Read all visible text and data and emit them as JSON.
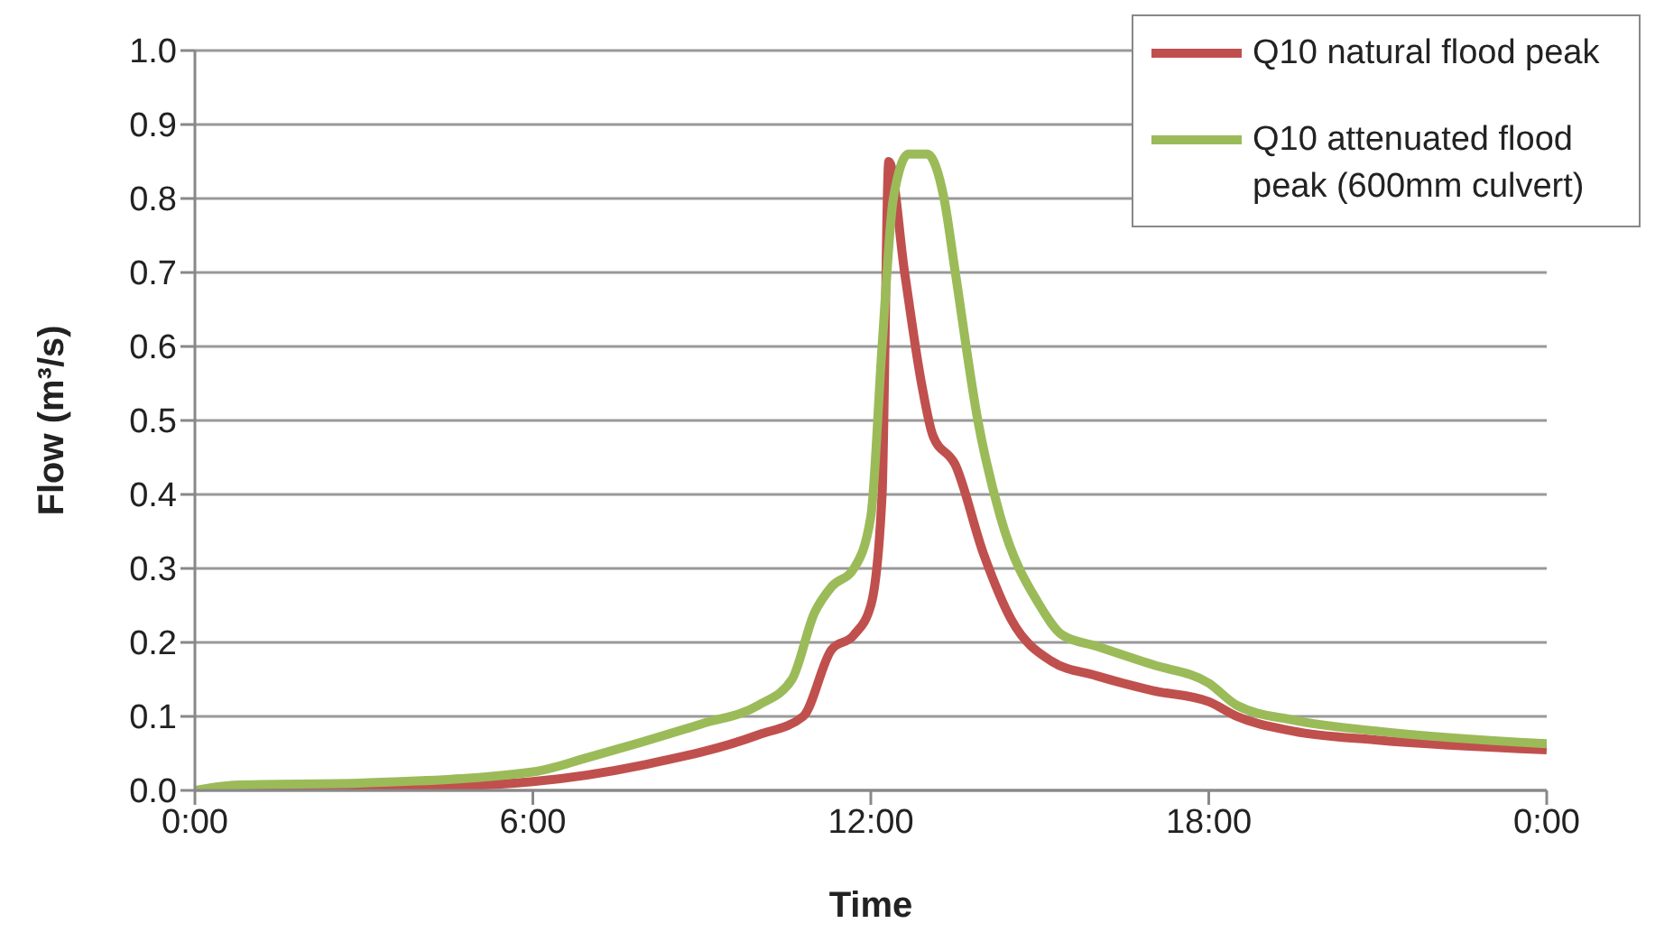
{
  "chart_data": {
    "type": "line",
    "xlabel": "Time",
    "ylabel": "Flow (m³/s)",
    "xlim": [
      0,
      24
    ],
    "xticks": [
      {
        "value": 0,
        "label": "0:00"
      },
      {
        "value": 6,
        "label": "6:00"
      },
      {
        "value": 12,
        "label": "12:00"
      },
      {
        "value": 18,
        "label": "18:00"
      },
      {
        "value": 24,
        "label": "0:00"
      }
    ],
    "ylim": [
      0,
      1
    ],
    "yticks": [
      {
        "value": 0,
        "label": "0.0"
      },
      {
        "value": 0.1,
        "label": "0.1"
      },
      {
        "value": 0.2,
        "label": "0.2"
      },
      {
        "value": 0.3,
        "label": "0.3"
      },
      {
        "value": 0.4,
        "label": "0.4"
      },
      {
        "value": 0.5,
        "label": "0.5"
      },
      {
        "value": 0.6,
        "label": "0.6"
      },
      {
        "value": 0.7,
        "label": "0.7"
      },
      {
        "value": 0.8,
        "label": "0.8"
      },
      {
        "value": 0.9,
        "label": "0.9"
      },
      {
        "value": 1,
        "label": "1.0"
      }
    ],
    "grid": "y",
    "legend": "top right",
    "marker": "none",
    "line_style": "solid",
    "series": [
      {
        "name": "Q10 natural flood peak",
        "color": "#c0504d",
        "x": [
          0,
          3,
          6,
          8,
          10,
          10.8,
          11.3,
          11.7,
          12,
          12.2,
          12.32,
          12.6,
          12.9,
          13.1,
          13.5,
          14,
          14.5,
          15.2,
          16,
          17,
          18,
          18.5,
          19.5,
          21,
          24
        ],
        "values": [
          0,
          0.002,
          0.012,
          0.035,
          0.075,
          0.1,
          0.19,
          0.21,
          0.25,
          0.4,
          0.85,
          0.7,
          0.55,
          0.48,
          0.44,
          0.32,
          0.23,
          0.175,
          0.155,
          0.135,
          0.12,
          0.1,
          0.08,
          0.068,
          0.055
        ]
      },
      {
        "name": "Q10 attenuated flood peak (600mm culvert)",
        "color": "#9bbb59",
        "x": [
          0,
          0.7,
          3,
          6,
          7,
          9,
          10,
          10.6,
          11,
          11.3,
          11.7,
          12,
          12.2,
          12.4,
          12.67,
          13,
          13.3,
          13.5,
          13.9,
          14.3,
          15,
          15.4,
          16,
          17,
          18,
          18.5,
          19.5,
          21,
          24
        ],
        "values": [
          0,
          0.007,
          0.01,
          0.025,
          0.045,
          0.09,
          0.115,
          0.15,
          0.24,
          0.275,
          0.3,
          0.37,
          0.6,
          0.8,
          0.86,
          0.86,
          0.8,
          0.7,
          0.5,
          0.37,
          0.25,
          0.21,
          0.195,
          0.17,
          0.145,
          0.115,
          0.095,
          0.08,
          0.063
        ]
      }
    ]
  }
}
